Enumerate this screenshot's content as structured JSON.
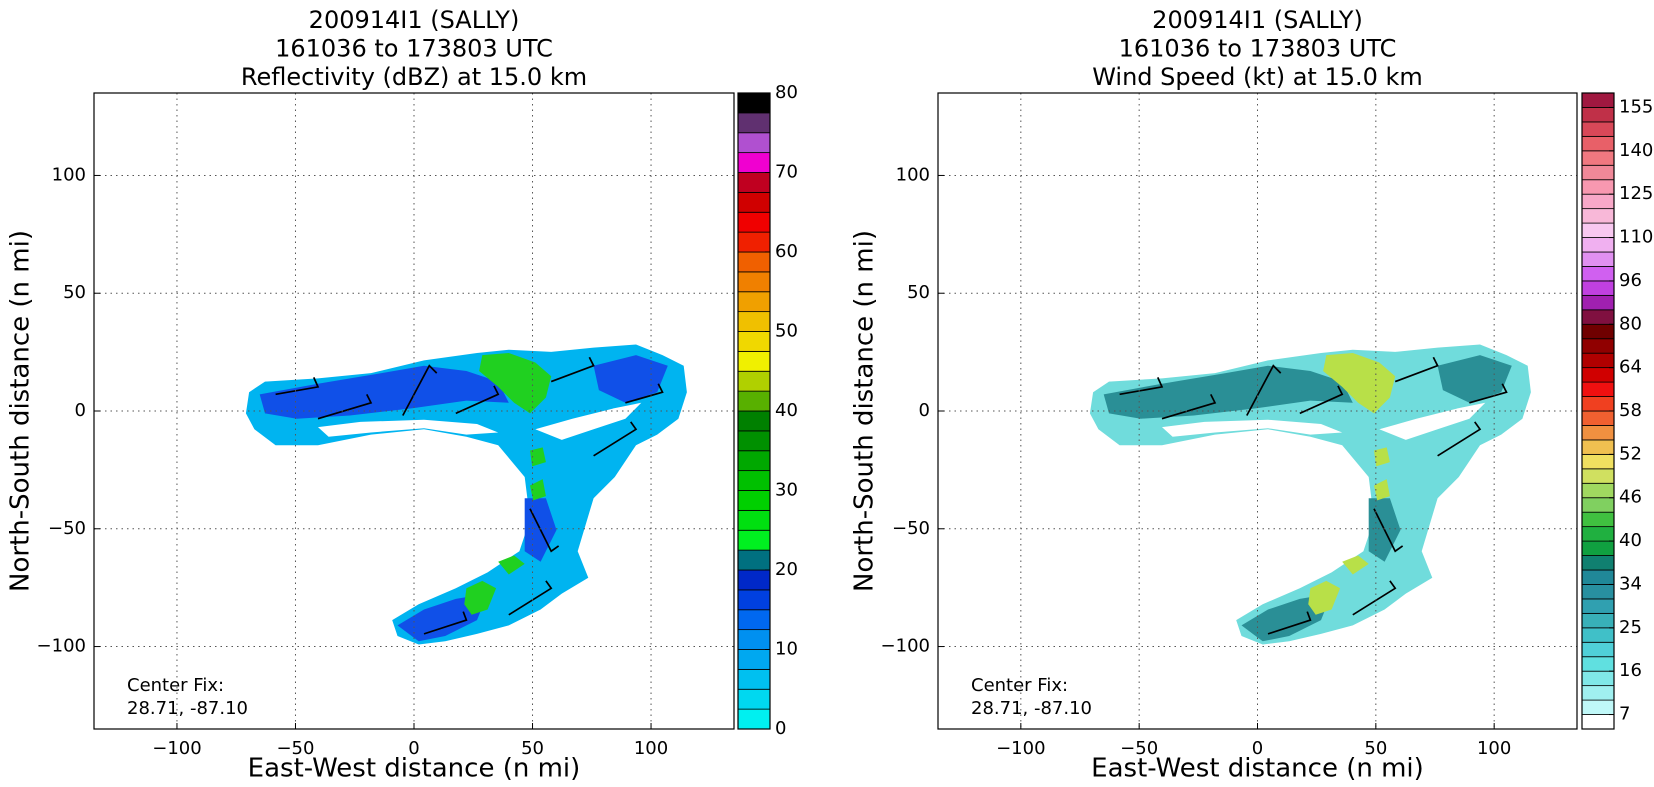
{
  "chart_data": [
    {
      "type": "heatmap",
      "title": [
        "200914I1 (SALLY)",
        "161036 to 173803 UTC",
        "Reflectivity (dBZ) at 15.0 km"
      ],
      "x_label": "East-West distance (n mi)",
      "y_label": "North-South distance (n mi)",
      "xlim": [
        -135,
        135
      ],
      "ylim": [
        -135,
        135
      ],
      "xticks": [
        {
          "value": -100,
          "label": "−100"
        },
        {
          "value": -50,
          "label": "−50"
        },
        0,
        50,
        100
      ],
      "yticks": [
        {
          "value": -100,
          "label": "−100"
        },
        {
          "value": -50,
          "label": "−50"
        },
        0,
        50,
        100
      ],
      "grid": true,
      "annotation": [
        "Center Fix:",
        "28.71, -87.10"
      ],
      "colorbar": {
        "lim": [
          0,
          80
        ],
        "ticks": [
          0,
          10,
          20,
          30,
          40,
          50,
          60,
          70,
          80
        ],
        "colors": [
          "#00f0f0",
          "#00d8f0",
          "#00c0f0",
          "#00a8f0",
          "#0090f0",
          "#0068f0",
          "#0040e0",
          "#0028c8",
          "#007080",
          "#00f020",
          "#00e010",
          "#00d000",
          "#00c000",
          "#00a800",
          "#009000",
          "#008000",
          "#58b000",
          "#b0d000",
          "#f0f000",
          "#f0d800",
          "#f0c000",
          "#f0a000",
          "#f08000",
          "#f06000",
          "#f02000",
          "#f00000",
          "#d00000",
          "#c00020",
          "#f000d0",
          "#b050d0",
          "#603070",
          "#000000"
        ]
      }
    },
    {
      "type": "heatmap",
      "title": [
        "200914I1 (SALLY)",
        "161036 to 173803 UTC",
        "Wind Speed (kt) at 15.0 km"
      ],
      "x_label": "East-West distance (n mi)",
      "y_label": "North-South distance (n mi)",
      "xlim": [
        -135,
        135
      ],
      "ylim": [
        -135,
        135
      ],
      "xticks": [
        {
          "value": -100,
          "label": "−100"
        },
        {
          "value": -50,
          "label": "−50"
        },
        0,
        50,
        100
      ],
      "yticks": [
        {
          "value": -100,
          "label": "−100"
        },
        {
          "value": -50,
          "label": "−50"
        },
        0,
        50,
        100
      ],
      "grid": true,
      "annotation": [
        "Center Fix:",
        "28.71, -87.10"
      ],
      "colorbar": {
        "ticks": [
          7,
          16,
          25,
          34,
          40,
          46,
          52,
          58,
          64,
          80,
          96,
          110,
          125,
          140,
          155
        ],
        "colors": [
          "#ffffff",
          "#c0f8f8",
          "#a0f0f0",
          "#80e8e8",
          "#60e0e0",
          "#50d0d8",
          "#40c0c8",
          "#38b0b8",
          "#30a0b0",
          "#2890a0",
          "#208898",
          "#108070",
          "#10a040",
          "#20b040",
          "#40c040",
          "#80d060",
          "#a0d860",
          "#d0e060",
          "#f0e060",
          "#f0c050",
          "#f09040",
          "#f06030",
          "#f04020",
          "#f01010",
          "#d00000",
          "#b00000",
          "#900000",
          "#700000",
          "#801040",
          "#a020b0",
          "#c040e0",
          "#d060f0",
          "#e090f0",
          "#f0b0f0",
          "#f8c8f0",
          "#f8b8d8",
          "#f8a8c8",
          "#f898b0",
          "#f08898",
          "#f07880",
          "#e86068",
          "#d84858",
          "#c03048",
          "#a01840"
        ]
      }
    }
  ]
}
